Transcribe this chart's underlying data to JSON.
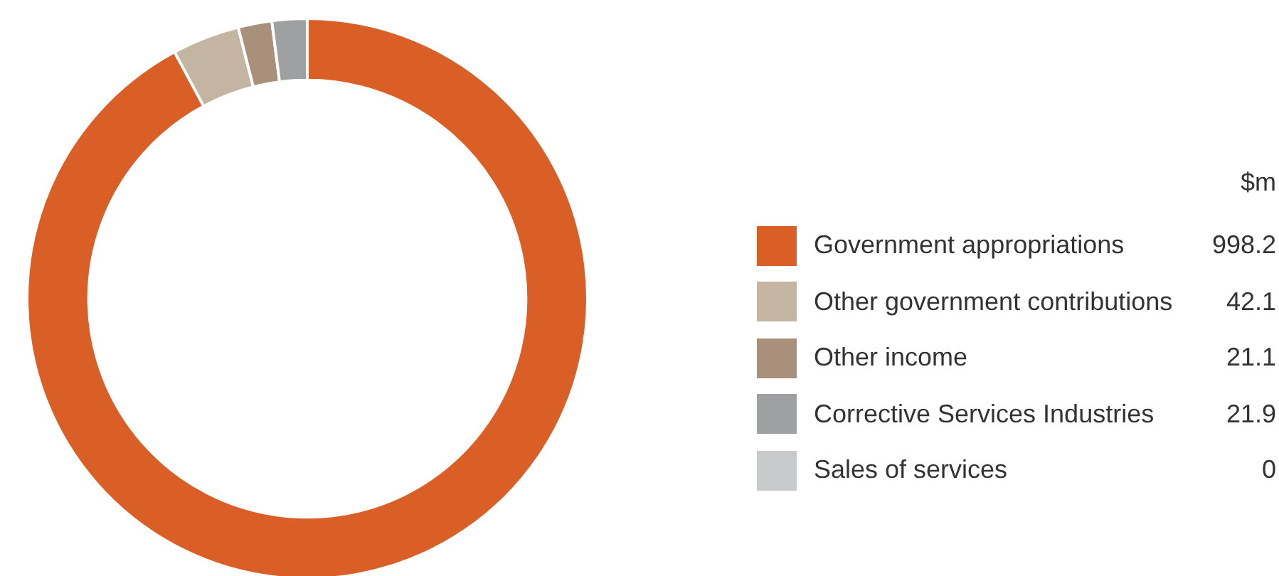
{
  "chart_data": {
    "type": "donut",
    "legend_title": "$m",
    "legend": "right",
    "value_labels": [
      "998.2",
      "42.1",
      "21.1",
      "21.9",
      "0"
    ],
    "categories": [
      "Government appropriations",
      "Other government contributions",
      "Other income",
      "Corrective Services Industries",
      "Sales of services"
    ],
    "values": [
      998.2,
      42.1,
      21.1,
      21.9,
      0
    ],
    "colors": [
      "#d95f27",
      "#c4b5a2",
      "#a8907a",
      "#9fa0a2",
      "#c8c9cb"
    ]
  }
}
